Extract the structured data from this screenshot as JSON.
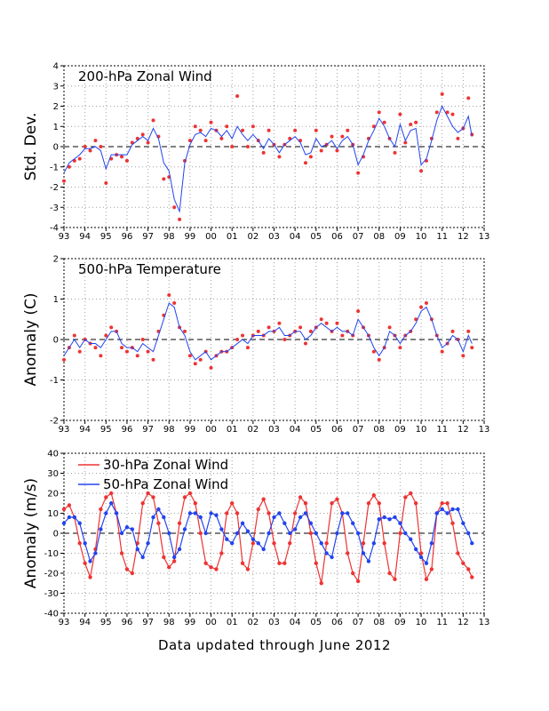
{
  "footer": "Data updated through June 2012",
  "colors": {
    "red": "#ee3333",
    "blue": "#2244ee"
  },
  "x_ticks": [
    "93",
    "94",
    "95",
    "96",
    "97",
    "98",
    "99",
    "00",
    "01",
    "02",
    "03",
    "04",
    "05",
    "06",
    "07",
    "08",
    "09",
    "10",
    "11",
    "12",
    "13"
  ],
  "chart_data": [
    {
      "type": "line",
      "title": "200-hPa Zonal Wind",
      "ylabel": "Std. Dev.",
      "xlim": [
        1993.0,
        2013.0
      ],
      "ylim": [
        -4,
        4
      ],
      "yticks": [
        -4,
        -3,
        -2,
        -1,
        0,
        1,
        2,
        3,
        4
      ],
      "series": [
        {
          "style": "dots",
          "color": "#ee3333",
          "x": [
            1993.0,
            1993.25,
            1993.5,
            1993.75,
            1994.0,
            1994.25,
            1994.5,
            1994.75,
            1995.0,
            1995.25,
            1995.5,
            1995.75,
            1996.0,
            1996.25,
            1996.5,
            1996.75,
            1997.0,
            1997.25,
            1997.5,
            1997.75,
            1998.0,
            1998.25,
            1998.5,
            1998.75,
            1999.0,
            1999.25,
            1999.5,
            1999.75,
            2000.0,
            2000.25,
            2000.5,
            2000.75,
            2001.0,
            2001.25,
            2001.5,
            2001.75,
            2002.0,
            2002.25,
            2002.5,
            2002.75,
            2003.0,
            2003.25,
            2003.5,
            2003.75,
            2004.0,
            2004.25,
            2004.5,
            2004.75,
            2005.0,
            2005.25,
            2005.5,
            2005.75,
            2006.0,
            2006.25,
            2006.5,
            2006.75,
            2007.0,
            2007.25,
            2007.5,
            2007.75,
            2008.0,
            2008.25,
            2008.5,
            2008.75,
            2009.0,
            2009.25,
            2009.5,
            2009.75,
            2010.0,
            2010.25,
            2010.5,
            2010.75,
            2011.0,
            2011.25,
            2011.5,
            2011.75,
            2012.0,
            2012.25,
            2012.42
          ],
          "y": [
            -1.7,
            -1.0,
            -0.7,
            -0.6,
            0.0,
            -0.2,
            0.3,
            0.0,
            -1.8,
            -0.6,
            -0.4,
            -0.5,
            -0.7,
            0.2,
            0.4,
            0.6,
            0.2,
            1.3,
            0.5,
            -1.6,
            -1.5,
            -3.0,
            -3.6,
            -0.7,
            0.3,
            1.0,
            0.8,
            0.3,
            1.2,
            0.8,
            0.4,
            1.0,
            0.0,
            2.5,
            0.8,
            0.0,
            1.0,
            0.3,
            -0.3,
            0.8,
            0.1,
            -0.5,
            0.1,
            0.4,
            0.8,
            0.3,
            -0.8,
            -0.5,
            0.8,
            -0.2,
            0.1,
            0.5,
            -0.2,
            0.5,
            0.8,
            0.1,
            -1.3,
            -0.5,
            0.4,
            1.0,
            1.7,
            1.2,
            0.4,
            -0.3,
            1.6,
            0.2,
            1.1,
            1.2,
            -1.2,
            -0.7,
            0.4,
            1.7,
            2.6,
            1.7,
            1.6,
            0.4,
            0.9,
            2.4,
            0.6
          ]
        },
        {
          "style": "line",
          "color": "#2244ee",
          "x": [
            1993.0,
            1993.25,
            1993.5,
            1993.75,
            1994.0,
            1994.25,
            1994.5,
            1994.75,
            1995.0,
            1995.25,
            1995.5,
            1995.75,
            1996.0,
            1996.25,
            1996.5,
            1996.75,
            1997.0,
            1997.25,
            1997.5,
            1997.75,
            1998.0,
            1998.25,
            1998.5,
            1998.75,
            1999.0,
            1999.25,
            1999.5,
            1999.75,
            2000.0,
            2000.25,
            2000.5,
            2000.75,
            2001.0,
            2001.25,
            2001.5,
            2001.75,
            2002.0,
            2002.25,
            2002.5,
            2002.75,
            2003.0,
            2003.25,
            2003.5,
            2003.75,
            2004.0,
            2004.25,
            2004.5,
            2004.75,
            2005.0,
            2005.25,
            2005.5,
            2005.75,
            2006.0,
            2006.25,
            2006.5,
            2006.75,
            2007.0,
            2007.25,
            2007.5,
            2007.75,
            2008.0,
            2008.25,
            2008.5,
            2008.75,
            2009.0,
            2009.25,
            2009.5,
            2009.75,
            2010.0,
            2010.25,
            2010.5,
            2010.75,
            2011.0,
            2011.25,
            2011.5,
            2011.75,
            2012.0,
            2012.25,
            2012.42
          ],
          "y": [
            -1.3,
            -0.8,
            -0.6,
            -0.4,
            -0.1,
            -0.1,
            0.0,
            -0.2,
            -1.1,
            -0.4,
            -0.4,
            -0.4,
            -0.4,
            0.1,
            0.3,
            0.5,
            0.3,
            0.9,
            0.4,
            -0.8,
            -1.2,
            -2.6,
            -3.2,
            -0.8,
            0.1,
            0.6,
            0.7,
            0.5,
            0.9,
            0.8,
            0.5,
            0.8,
            0.4,
            1.0,
            0.6,
            0.3,
            0.6,
            0.3,
            -0.1,
            0.4,
            0.1,
            -0.3,
            0.1,
            0.3,
            0.5,
            0.2,
            -0.4,
            -0.3,
            0.4,
            0.0,
            0.1,
            0.3,
            -0.1,
            0.3,
            0.5,
            0.1,
            -0.9,
            -0.4,
            0.3,
            0.8,
            1.4,
            1.0,
            0.4,
            0.0,
            1.1,
            0.3,
            0.8,
            0.9,
            -0.9,
            -0.6,
            0.3,
            1.3,
            2.0,
            1.5,
            1.0,
            0.7,
            0.9,
            1.5,
            0.5
          ]
        }
      ]
    },
    {
      "type": "line",
      "title": "500-hPa Temperature",
      "ylabel": "Anomaly (C)",
      "xlim": [
        1993.0,
        2013.0
      ],
      "ylim": [
        -2,
        2
      ],
      "yticks": [
        -2,
        -1,
        0,
        1,
        2
      ],
      "series": [
        {
          "style": "dots",
          "color": "#ee3333",
          "x": [
            1993.0,
            1993.25,
            1993.5,
            1993.75,
            1994.0,
            1994.25,
            1994.5,
            1994.75,
            1995.0,
            1995.25,
            1995.5,
            1995.75,
            1996.0,
            1996.25,
            1996.5,
            1996.75,
            1997.0,
            1997.25,
            1997.5,
            1997.75,
            1998.0,
            1998.25,
            1998.5,
            1998.75,
            1999.0,
            1999.25,
            1999.5,
            1999.75,
            2000.0,
            2000.25,
            2000.5,
            2000.75,
            2001.0,
            2001.25,
            2001.5,
            2001.75,
            2002.0,
            2002.25,
            2002.5,
            2002.75,
            2003.0,
            2003.25,
            2003.5,
            2003.75,
            2004.0,
            2004.25,
            2004.5,
            2004.75,
            2005.0,
            2005.25,
            2005.5,
            2005.75,
            2006.0,
            2006.25,
            2006.5,
            2006.75,
            2007.0,
            2007.25,
            2007.5,
            2007.75,
            2008.0,
            2008.25,
            2008.5,
            2008.75,
            2009.0,
            2009.25,
            2009.5,
            2009.75,
            2010.0,
            2010.25,
            2010.5,
            2010.75,
            2011.0,
            2011.25,
            2011.5,
            2011.75,
            2012.0,
            2012.25,
            2012.42
          ],
          "y": [
            -0.5,
            -0.2,
            0.1,
            -0.3,
            0.0,
            -0.1,
            -0.2,
            -0.4,
            0.1,
            0.3,
            0.2,
            -0.2,
            -0.3,
            -0.2,
            -0.4,
            0.0,
            -0.3,
            -0.5,
            0.2,
            0.6,
            1.1,
            0.9,
            0.3,
            0.2,
            -0.4,
            -0.6,
            -0.5,
            -0.3,
            -0.7,
            -0.4,
            -0.3,
            -0.3,
            -0.2,
            0.0,
            0.1,
            -0.2,
            0.1,
            0.2,
            0.1,
            0.3,
            0.2,
            0.4,
            0.0,
            0.1,
            0.2,
            0.3,
            -0.1,
            0.2,
            0.3,
            0.5,
            0.4,
            0.2,
            0.4,
            0.1,
            0.2,
            0.1,
            0.7,
            0.3,
            0.1,
            -0.3,
            -0.5,
            -0.2,
            0.3,
            0.1,
            -0.2,
            0.1,
            0.2,
            0.5,
            0.8,
            0.9,
            0.5,
            0.1,
            -0.3,
            -0.1,
            0.2,
            0.0,
            -0.4,
            0.2,
            -0.2
          ]
        },
        {
          "style": "line",
          "color": "#2244ee",
          "x": [
            1993.0,
            1993.25,
            1993.5,
            1993.75,
            1994.0,
            1994.25,
            1994.5,
            1994.75,
            1995.0,
            1995.25,
            1995.5,
            1995.75,
            1996.0,
            1996.25,
            1996.5,
            1996.75,
            1997.0,
            1997.25,
            1997.5,
            1997.75,
            1998.0,
            1998.25,
            1998.5,
            1998.75,
            1999.0,
            1999.25,
            1999.5,
            1999.75,
            2000.0,
            2000.25,
            2000.5,
            2000.75,
            2001.0,
            2001.25,
            2001.5,
            2001.75,
            2002.0,
            2002.25,
            2002.5,
            2002.75,
            2003.0,
            2003.25,
            2003.5,
            2003.75,
            2004.0,
            2004.25,
            2004.5,
            2004.75,
            2005.0,
            2005.25,
            2005.5,
            2005.75,
            2006.0,
            2006.25,
            2006.5,
            2006.75,
            2007.0,
            2007.25,
            2007.5,
            2007.75,
            2008.0,
            2008.25,
            2008.5,
            2008.75,
            2009.0,
            2009.25,
            2009.5,
            2009.75,
            2010.0,
            2010.25,
            2010.5,
            2010.75,
            2011.0,
            2011.25,
            2011.5,
            2011.75,
            2012.0,
            2012.25,
            2012.42
          ],
          "y": [
            -0.4,
            -0.2,
            0.0,
            -0.2,
            0.0,
            -0.1,
            -0.1,
            -0.2,
            0.0,
            0.2,
            0.2,
            -0.1,
            -0.2,
            -0.2,
            -0.3,
            -0.1,
            -0.2,
            -0.3,
            0.1,
            0.5,
            0.9,
            0.8,
            0.3,
            0.1,
            -0.3,
            -0.5,
            -0.4,
            -0.3,
            -0.5,
            -0.4,
            -0.3,
            -0.3,
            -0.2,
            -0.1,
            0.0,
            -0.1,
            0.1,
            0.1,
            0.1,
            0.2,
            0.2,
            0.3,
            0.1,
            0.1,
            0.2,
            0.2,
            0.0,
            0.1,
            0.3,
            0.4,
            0.3,
            0.2,
            0.3,
            0.2,
            0.2,
            0.1,
            0.5,
            0.3,
            0.1,
            -0.2,
            -0.4,
            -0.2,
            0.2,
            0.1,
            -0.1,
            0.1,
            0.2,
            0.4,
            0.7,
            0.8,
            0.5,
            0.1,
            -0.2,
            -0.1,
            0.1,
            0.0,
            -0.3,
            0.1,
            -0.1
          ]
        }
      ]
    },
    {
      "type": "line",
      "ylabel": "Anomaly (m/s)",
      "xlim": [
        1993.0,
        2013.0
      ],
      "ylim": [
        -40,
        40
      ],
      "yticks": [
        -40,
        -30,
        -20,
        -10,
        0,
        10,
        20,
        30,
        40
      ],
      "series": [
        {
          "name": "30-hPa Zonal Wind",
          "color": "#ee3333",
          "x": [
            1993.0,
            1993.25,
            1993.5,
            1993.75,
            1994.0,
            1994.25,
            1994.5,
            1994.75,
            1995.0,
            1995.25,
            1995.5,
            1995.75,
            1996.0,
            1996.25,
            1996.5,
            1996.75,
            1997.0,
            1997.25,
            1997.5,
            1997.75,
            1998.0,
            1998.25,
            1998.5,
            1998.75,
            1999.0,
            1999.25,
            1999.5,
            1999.75,
            2000.0,
            2000.25,
            2000.5,
            2000.75,
            2001.0,
            2001.25,
            2001.5,
            2001.75,
            2002.0,
            2002.25,
            2002.5,
            2002.75,
            2003.0,
            2003.25,
            2003.5,
            2003.75,
            2004.0,
            2004.25,
            2004.5,
            2004.75,
            2005.0,
            2005.25,
            2005.5,
            2005.75,
            2006.0,
            2006.25,
            2006.5,
            2006.75,
            2007.0,
            2007.25,
            2007.5,
            2007.75,
            2008.0,
            2008.25,
            2008.5,
            2008.75,
            2009.0,
            2009.25,
            2009.5,
            2009.75,
            2010.0,
            2010.25,
            2010.5,
            2010.75,
            2011.0,
            2011.25,
            2011.5,
            2011.75,
            2012.0,
            2012.25,
            2012.42
          ],
          "y": [
            12,
            14,
            8,
            -5,
            -15,
            -22,
            -8,
            12,
            18,
            20,
            10,
            -10,
            -18,
            -20,
            -5,
            15,
            20,
            18,
            5,
            -12,
            -17,
            -14,
            5,
            18,
            20,
            15,
            0,
            -15,
            -17,
            -18,
            -10,
            10,
            15,
            10,
            -15,
            -18,
            -5,
            12,
            17,
            10,
            -5,
            -15,
            -15,
            -5,
            10,
            18,
            15,
            0,
            -15,
            -25,
            -5,
            15,
            17,
            10,
            -10,
            -20,
            -24,
            -5,
            15,
            19,
            15,
            -5,
            -20,
            -23,
            0,
            18,
            20,
            15,
            -10,
            -23,
            -18,
            10,
            15,
            15,
            5,
            -10,
            -15,
            -18,
            -22
          ]
        },
        {
          "name": "50-hPa Zonal Wind",
          "color": "#2244ee",
          "x": [
            1993.0,
            1993.25,
            1993.5,
            1993.75,
            1994.0,
            1994.25,
            1994.5,
            1994.75,
            1995.0,
            1995.25,
            1995.5,
            1995.75,
            1996.0,
            1996.25,
            1996.5,
            1996.75,
            1997.0,
            1997.25,
            1997.5,
            1997.75,
            1998.0,
            1998.25,
            1998.5,
            1998.75,
            1999.0,
            1999.25,
            1999.5,
            1999.75,
            2000.0,
            2000.25,
            2000.5,
            2000.75,
            2001.0,
            2001.25,
            2001.5,
            2001.75,
            2002.0,
            2002.25,
            2002.5,
            2002.75,
            2003.0,
            2003.25,
            2003.5,
            2003.75,
            2004.0,
            2004.25,
            2004.5,
            2004.75,
            2005.0,
            2005.25,
            2005.5,
            2005.75,
            2006.0,
            2006.25,
            2006.5,
            2006.75,
            2007.0,
            2007.25,
            2007.5,
            2007.75,
            2008.0,
            2008.25,
            2008.5,
            2008.75,
            2009.0,
            2009.25,
            2009.5,
            2009.75,
            2010.0,
            2010.25,
            2010.5,
            2010.75,
            2011.0,
            2011.25,
            2011.5,
            2011.75,
            2012.0,
            2012.25,
            2012.42
          ],
          "y": [
            5,
            8,
            8,
            5,
            -5,
            -14,
            -10,
            2,
            10,
            15,
            10,
            0,
            3,
            2,
            -8,
            -12,
            -5,
            8,
            12,
            8,
            0,
            -12,
            -8,
            2,
            10,
            10,
            8,
            0,
            10,
            9,
            2,
            -3,
            -5,
            0,
            5,
            1,
            -3,
            -5,
            -8,
            0,
            8,
            10,
            5,
            0,
            2,
            8,
            10,
            5,
            0,
            -5,
            -10,
            -12,
            0,
            10,
            10,
            5,
            0,
            -10,
            -14,
            -5,
            7,
            8,
            7,
            8,
            5,
            0,
            -3,
            -8,
            -12,
            -15,
            -5,
            10,
            12,
            10,
            12,
            12,
            5,
            0,
            -5
          ]
        }
      ]
    }
  ]
}
